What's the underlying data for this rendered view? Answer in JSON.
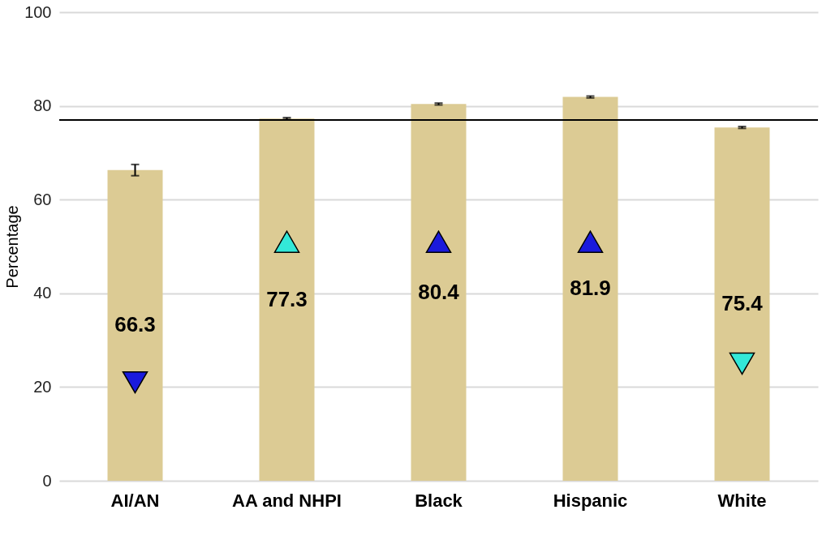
{
  "chart_data": {
    "type": "bar",
    "ylabel": "Percentage",
    "categories": [
      "AI/AN",
      "AA and NHPI",
      "Black",
      "Hispanic",
      "White"
    ],
    "series": [
      {
        "color": "#dccb94",
        "values": [
          66.3,
          77.3,
          80.4,
          81.9,
          75.4
        ],
        "errors": [
          1.2,
          0.2,
          0.2,
          0.2,
          0.2
        ],
        "value_labels": [
          "66.3",
          "77.3",
          "80.4",
          "81.9",
          "75.4"
        ]
      },
      {
        "type": "scatter",
        "marker": "triangle",
        "colors": [
          "#1a1adc",
          "#33e8d8",
          "#1a1adc",
          "#1a1adc",
          "#33e8d8"
        ],
        "values": [
          null,
          51,
          51,
          51,
          null
        ]
      },
      {
        "type": "scatter",
        "marker": "triangle-down",
        "colors": [
          "#1a1adc",
          "#33e8d8",
          "#1a1adc",
          "#1a1adc",
          "#33e8d8"
        ],
        "values": [
          21,
          null,
          null,
          null,
          25
        ]
      }
    ],
    "ylim": [
      0,
      100
    ],
    "yticks": [
      0,
      20,
      40,
      60,
      80,
      100
    ],
    "grid": "y",
    "ref_lines": [
      {
        "axis": "y",
        "value": 77.0,
        "color": "#000000"
      }
    ]
  }
}
